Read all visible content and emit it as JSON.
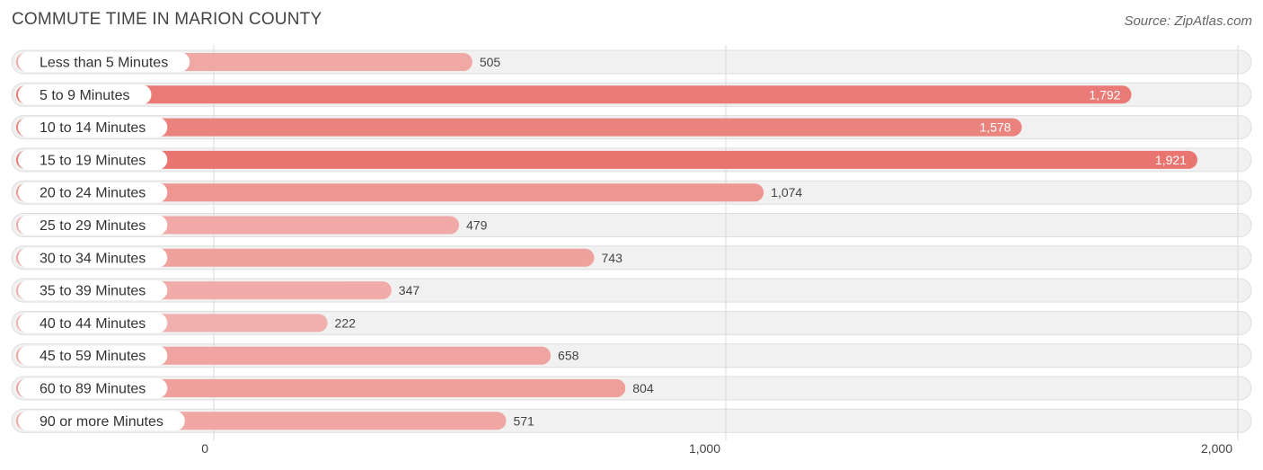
{
  "chart_data": {
    "type": "bar",
    "orientation": "horizontal",
    "title": "COMMUTE TIME IN MARION COUNTY",
    "source": "Source: ZipAtlas.com",
    "categories": [
      "Less than 5 Minutes",
      "5 to 9 Minutes",
      "10 to 14 Minutes",
      "15 to 19 Minutes",
      "20 to 24 Minutes",
      "25 to 29 Minutes",
      "30 to 34 Minutes",
      "35 to 39 Minutes",
      "40 to 44 Minutes",
      "45 to 59 Minutes",
      "60 to 89 Minutes",
      "90 or more Minutes"
    ],
    "values": [
      505,
      1792,
      1578,
      1921,
      1074,
      479,
      743,
      347,
      222,
      658,
      804,
      571
    ],
    "value_labels": [
      "505",
      "1,792",
      "1,578",
      "1,921",
      "1,074",
      "479",
      "743",
      "347",
      "222",
      "658",
      "804",
      "571"
    ],
    "xlim": [
      0,
      2000
    ],
    "xticks": [
      0,
      1000,
      2000
    ],
    "xtick_labels": [
      "0",
      "1,000",
      "2,000"
    ],
    "grid": true,
    "colors": {
      "bar_light": "#f2b3b1",
      "bar_dark": "#e8756f"
    }
  }
}
